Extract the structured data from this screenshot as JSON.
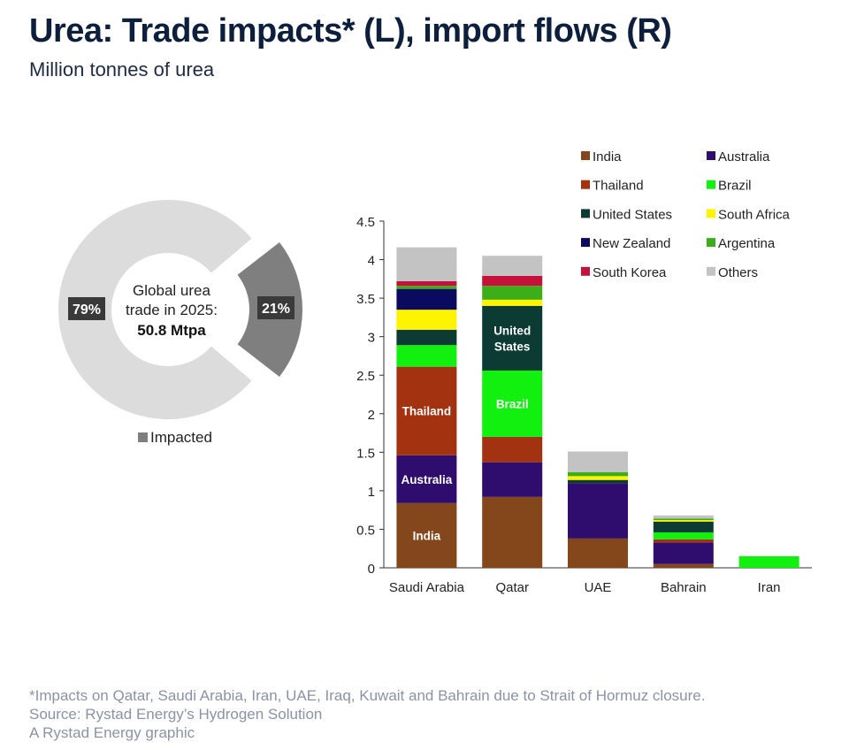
{
  "header": {
    "title": "Urea: Trade impacts* (L), import flows (R)",
    "subtitle": "Million tonnes of urea"
  },
  "footnotes": {
    "note": "*Impacts on Qatar, Saudi Arabia, Iran, UAE, Iraq, Kuwait and Bahrain due to Strait of Hormuz closure.",
    "source": "Source: Rystad Energy’s Hydrogen Solution",
    "credit": "A Rystad Energy graphic"
  },
  "chart_data": [
    {
      "type": "pie",
      "variant": "donut",
      "center_label_line1": "Global urea",
      "center_label_line2": "trade in 2025:",
      "center_value": "50.8 Mtpa",
      "slices": [
        {
          "label": "",
          "value": 79,
          "display": "79%",
          "color": "#dcdcdc"
        },
        {
          "label": "Impacted",
          "value": 21,
          "display": "21%",
          "color": "#7f7f7f"
        }
      ],
      "legend": [
        {
          "name": "Impacted",
          "color": "#7f7f7f"
        }
      ]
    },
    {
      "type": "bar",
      "stacked": true,
      "categories": [
        "Saudi Arabia",
        "Qatar",
        "UAE",
        "Bahrain",
        "Iran"
      ],
      "ylim": [
        0,
        4.5
      ],
      "yticks": [
        "0",
        "0.5",
        "1",
        "1.5",
        "2",
        "2.5",
        "3",
        "3.5",
        "4",
        "4.5"
      ],
      "legend_position": "top-right",
      "series": [
        {
          "name": "India",
          "color": "#84461b",
          "values": [
            0.84,
            0.92,
            0.38,
            0.05,
            0
          ]
        },
        {
          "name": "Australia",
          "color": "#2e0d6e",
          "values": [
            0.62,
            0.45,
            0.72,
            0.28,
            0
          ]
        },
        {
          "name": "Thailand",
          "color": "#a33210",
          "values": [
            1.15,
            0.33,
            0,
            0.04,
            0
          ]
        },
        {
          "name": "Brazil",
          "color": "#12f010",
          "values": [
            0.28,
            0.86,
            0,
            0.09,
            0.15
          ]
        },
        {
          "name": "United States",
          "color": "#0c3b34",
          "values": [
            0.2,
            0.84,
            0.04,
            0.14,
            0
          ]
        },
        {
          "name": "South Africa",
          "color": "#fcf400",
          "values": [
            0.26,
            0.08,
            0.05,
            0.02,
            0
          ]
        },
        {
          "name": "New Zealand",
          "color": "#0a0a5e",
          "values": [
            0.27,
            0,
            0,
            0,
            0
          ]
        },
        {
          "name": "Argentina",
          "color": "#3cae1a",
          "values": [
            0.04,
            0.18,
            0.05,
            0.02,
            0
          ]
        },
        {
          "name": "South Korea",
          "color": "#c5123a",
          "values": [
            0.06,
            0.13,
            0,
            0,
            0
          ]
        },
        {
          "name": "Others",
          "color": "#c3c3c3",
          "values": [
            0.44,
            0.26,
            0.27,
            0.04,
            0
          ]
        }
      ],
      "data_labels": [
        {
          "category": "Saudi Arabia",
          "series": "India",
          "text": "India"
        },
        {
          "category": "Saudi Arabia",
          "series": "Australia",
          "text": "Australia"
        },
        {
          "category": "Saudi Arabia",
          "series": "Thailand",
          "text": "Thailand"
        },
        {
          "category": "Qatar",
          "series": "Brazil",
          "text": "Brazil"
        },
        {
          "category": "Qatar",
          "series": "United States",
          "text": "United States"
        }
      ]
    }
  ]
}
